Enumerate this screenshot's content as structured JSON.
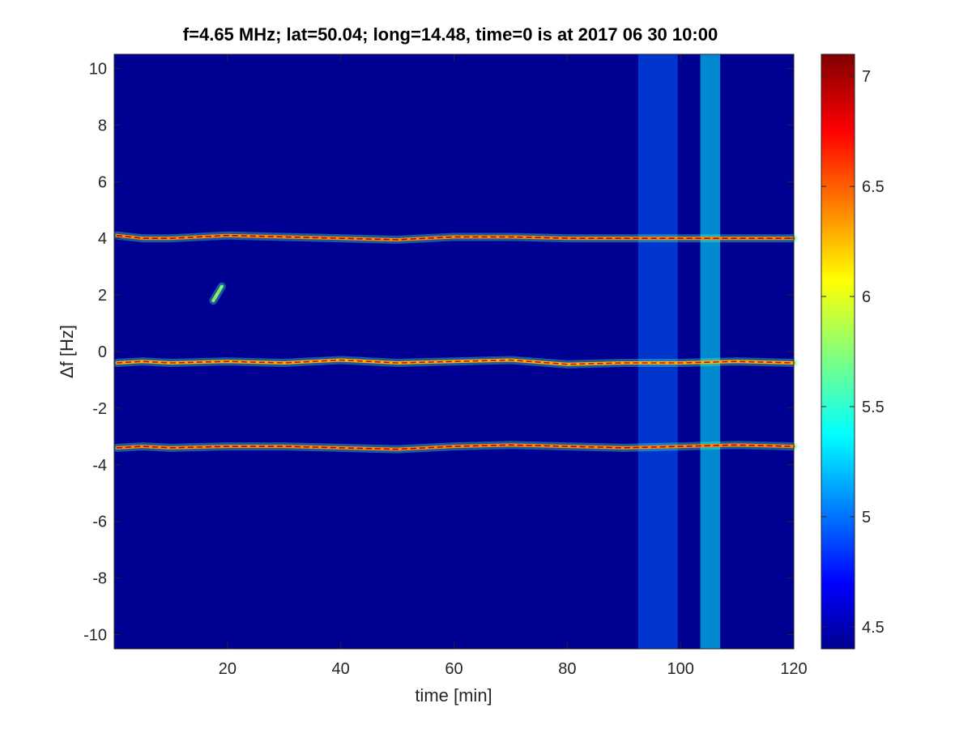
{
  "chart_data": {
    "type": "heatmap",
    "title": "f=4.65 MHz;  lat=50.04; long=14.48, time=0 is at 2017 06 30 10:00",
    "xlabel": "time [min]",
    "ylabel": "Δf [Hz]",
    "xlim": [
      0,
      120
    ],
    "ylim": [
      -10.5,
      10.5
    ],
    "xticks": [
      20,
      40,
      60,
      80,
      100,
      120
    ],
    "yticks": [
      10,
      8,
      6,
      4,
      2,
      0,
      -2,
      -4,
      -6,
      -8,
      -10
    ],
    "colorbar": {
      "colormap": "jet",
      "range": [
        4.4,
        7.1
      ],
      "ticks": [
        7,
        6.5,
        6,
        5.5,
        5,
        4.5
      ]
    },
    "background_value": 4.45,
    "traces": [
      {
        "id": "upper",
        "points": [
          [
            0.5,
            4.1
          ],
          [
            5,
            4.0
          ],
          [
            10,
            4.0
          ],
          [
            20,
            4.1
          ],
          [
            30,
            4.05
          ],
          [
            40,
            4.0
          ],
          [
            50,
            3.95
          ],
          [
            60,
            4.05
          ],
          [
            70,
            4.05
          ],
          [
            80,
            4.0
          ],
          [
            90,
            4.0
          ],
          [
            100,
            4.0
          ],
          [
            110,
            4.0
          ],
          [
            120,
            4.0
          ]
        ],
        "peak": 7.0
      },
      {
        "id": "middle",
        "points": [
          [
            0.5,
            -0.4
          ],
          [
            5,
            -0.35
          ],
          [
            10,
            -0.4
          ],
          [
            20,
            -0.35
          ],
          [
            30,
            -0.4
          ],
          [
            40,
            -0.3
          ],
          [
            50,
            -0.4
          ],
          [
            60,
            -0.35
          ],
          [
            70,
            -0.3
          ],
          [
            80,
            -0.45
          ],
          [
            90,
            -0.4
          ],
          [
            100,
            -0.4
          ],
          [
            110,
            -0.35
          ],
          [
            120,
            -0.4
          ]
        ],
        "peak": 6.9
      },
      {
        "id": "lower",
        "points": [
          [
            0.5,
            -3.4
          ],
          [
            5,
            -3.35
          ],
          [
            10,
            -3.4
          ],
          [
            20,
            -3.35
          ],
          [
            30,
            -3.35
          ],
          [
            40,
            -3.4
          ],
          [
            50,
            -3.45
          ],
          [
            60,
            -3.35
          ],
          [
            70,
            -3.3
          ],
          [
            80,
            -3.35
          ],
          [
            90,
            -3.4
          ],
          [
            100,
            -3.35
          ],
          [
            110,
            -3.3
          ],
          [
            120,
            -3.35
          ]
        ],
        "peak": 7.0
      },
      {
        "id": "short-blip",
        "points": [
          [
            17.5,
            1.8
          ],
          [
            19,
            2.3
          ]
        ],
        "peak": 6.3
      }
    ],
    "interference_bands": [
      {
        "x_range": [
          92.5,
          99.5
        ],
        "intensity": 5.0
      },
      {
        "x_range": [
          103.5,
          107
        ],
        "intensity": 5.4
      }
    ]
  }
}
